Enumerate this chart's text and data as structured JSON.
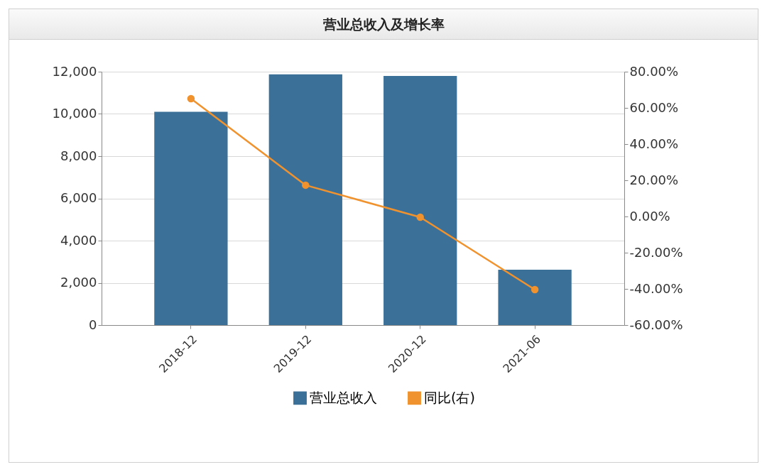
{
  "chart_data": {
    "type": "bar",
    "title": "营业总收入及增长率",
    "categories": [
      "2018-12",
      "2019-12",
      "2020-12",
      "2021-06"
    ],
    "series": [
      {
        "name": "营业总收入",
        "color": "#3b7099",
        "values": [
          10100,
          11870,
          11800,
          2620
        ]
      },
      {
        "name": "同比(右)",
        "type": "line",
        "axis": "y2",
        "color": "#f0922d",
        "values": [
          65.1,
          17.3,
          -0.4,
          -40.4
        ]
      }
    ],
    "ylim": [
      0,
      12000
    ],
    "yticks": [
      0,
      {
        "value": 2000,
        "label": "2,000"
      },
      {
        "value": 4000,
        "label": "4,000"
      },
      {
        "value": 6000,
        "label": "6,000"
      },
      {
        "value": 8000,
        "label": "8,000"
      },
      {
        "value": 10000,
        "label": "10,000"
      },
      {
        "value": 12000,
        "label": "12,000"
      }
    ],
    "y2lim": [
      -60,
      80
    ],
    "y2ticks": [
      {
        "value": -60,
        "label": "-60.00%"
      },
      {
        "value": -40,
        "label": "-40.00%"
      },
      {
        "value": -20,
        "label": "-20.00%"
      },
      {
        "value": 0,
        "label": "0.00%"
      },
      {
        "value": 20,
        "label": "20.00%"
      },
      {
        "value": 40,
        "label": "40.00%"
      },
      {
        "value": 60,
        "label": "60.00%"
      },
      {
        "value": 80,
        "label": "80.00%"
      }
    ],
    "grid": "y",
    "legend": "bottom",
    "marker": "circle"
  }
}
